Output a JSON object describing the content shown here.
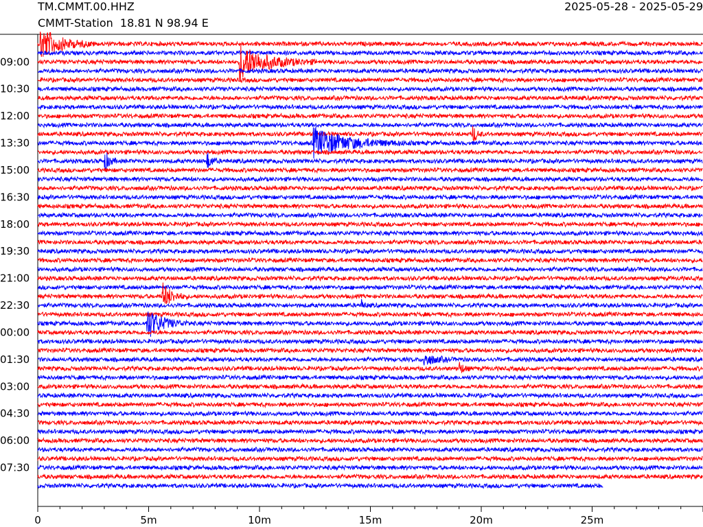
{
  "header": {
    "station_code": "TM.CMMT.00.HHZ",
    "station_location": "CMMT-Station  18.81 N 98.94 E",
    "date_range": "2025-05-28 - 2025-05-29"
  },
  "chart_data": {
    "type": "line",
    "title": "",
    "xlabel": "",
    "ylabel": "",
    "x_unit": "minutes",
    "x_range": [
      0,
      30
    ],
    "x_ticks": [
      {
        "value": 0,
        "label": "0"
      },
      {
        "value": 5,
        "label": "5m"
      },
      {
        "value": 10,
        "label": "10m"
      },
      {
        "value": 15,
        "label": "15m"
      },
      {
        "value": 20,
        "label": "20m"
      },
      {
        "value": 25,
        "label": "25m"
      }
    ],
    "row_interval_minutes": 30,
    "row_count": 50,
    "last_row_end_minute": 25.5,
    "colors": [
      "#ff0000",
      "#0000ff"
    ],
    "y_labels": [
      {
        "row": 2,
        "label": "09:00"
      },
      {
        "row": 5,
        "label": "10:30"
      },
      {
        "row": 8,
        "label": "12:00"
      },
      {
        "row": 11,
        "label": "13:30"
      },
      {
        "row": 14,
        "label": "15:00"
      },
      {
        "row": 17,
        "label": "16:30"
      },
      {
        "row": 20,
        "label": "18:00"
      },
      {
        "row": 23,
        "label": "19:30"
      },
      {
        "row": 26,
        "label": "21:00"
      },
      {
        "row": 29,
        "label": "22:30"
      },
      {
        "row": 32,
        "label": "00:00"
      },
      {
        "row": 35,
        "label": "01:30"
      },
      {
        "row": 38,
        "label": "03:00"
      },
      {
        "row": 41,
        "label": "04:30"
      },
      {
        "row": 44,
        "label": "06:00"
      },
      {
        "row": 47,
        "label": "07:30"
      }
    ],
    "events": [
      {
        "row": 0,
        "minute": 0.1,
        "amplitude": 1.0,
        "duration": 2.5
      },
      {
        "row": 2,
        "minute": 9.1,
        "amplitude": 1.0,
        "duration": 3.5
      },
      {
        "row": 11,
        "minute": 12.4,
        "amplitude": 0.85,
        "duration": 4.5
      },
      {
        "row": 10,
        "minute": 19.6,
        "amplitude": 0.6,
        "duration": 0.5
      },
      {
        "row": 13,
        "minute": 3.0,
        "amplitude": 0.65,
        "duration": 0.6
      },
      {
        "row": 13,
        "minute": 7.6,
        "amplitude": 0.6,
        "duration": 0.6
      },
      {
        "row": 28,
        "minute": 5.6,
        "amplitude": 0.8,
        "duration": 1.2
      },
      {
        "row": 31,
        "minute": 4.9,
        "amplitude": 0.9,
        "duration": 2.0
      },
      {
        "row": 35,
        "minute": 17.4,
        "amplitude": 0.35,
        "duration": 1.5
      },
      {
        "row": 36,
        "minute": 19.0,
        "amplitude": 0.4,
        "duration": 0.5
      },
      {
        "row": 29,
        "minute": 14.6,
        "amplitude": 0.3,
        "duration": 0.3
      }
    ]
  }
}
